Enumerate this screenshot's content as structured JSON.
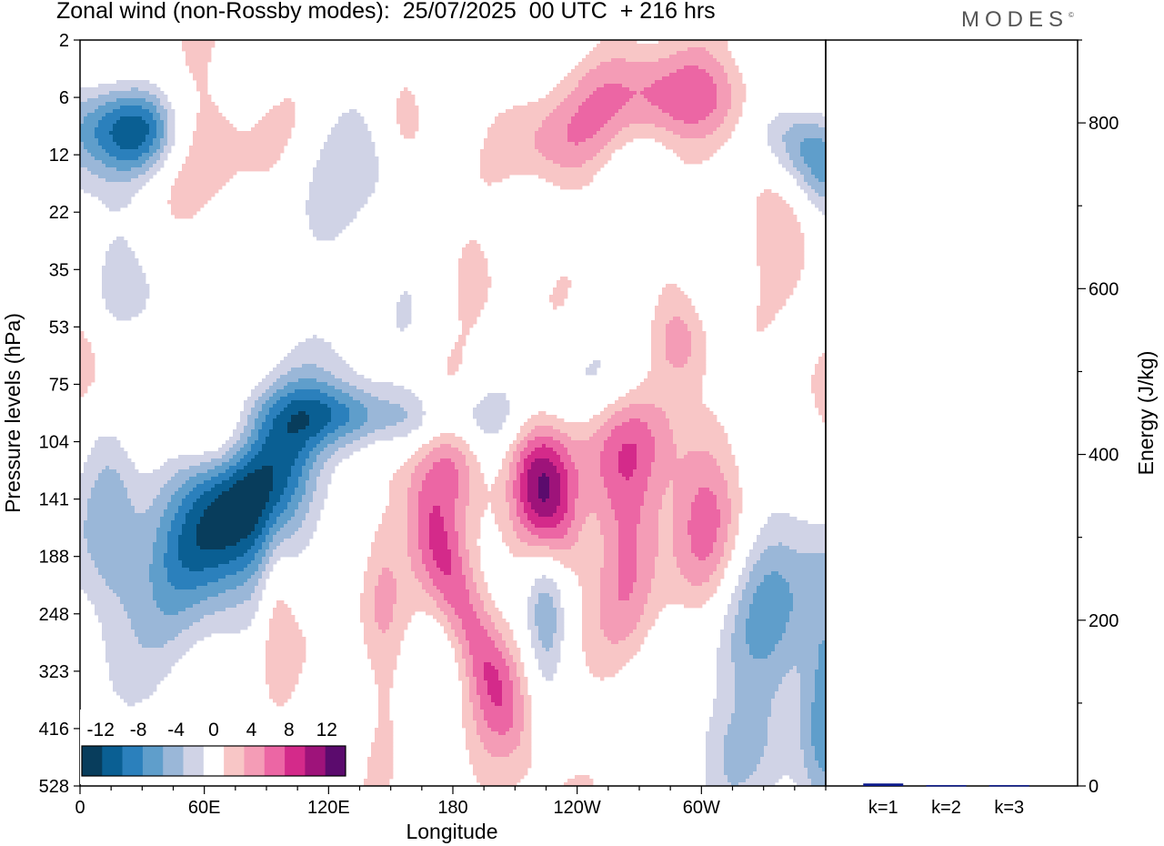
{
  "title": "Zonal wind (non-Rossby modes):  25/07/2025  00 UTC  + 216 hrs",
  "logo": {
    "text": "MODES",
    "mark": "©"
  },
  "chart_data": [
    {
      "type": "heatmap",
      "title": "Zonal wind (non-Rossby modes):  25/07/2025  00 UTC  + 216 hrs",
      "xlabel": "Longitude",
      "ylabel": "Pressure levels (hPa)",
      "x_ticks": [
        "0",
        "60E",
        "120E",
        "180",
        "120W",
        "60W"
      ],
      "x_tick_values": [
        0,
        60,
        120,
        180,
        240,
        300
      ],
      "xlim": [
        0,
        360
      ],
      "y_ticks": [
        "2",
        "6",
        "12",
        "22",
        "35",
        "53",
        "75",
        "104",
        "141",
        "188",
        "248",
        "323",
        "416",
        "528"
      ],
      "colorbar": {
        "labels": [
          "-12",
          "-8",
          "-4",
          "0",
          "4",
          "8",
          "12"
        ],
        "label_values": [
          -12,
          -8,
          -4,
          0,
          4,
          8,
          12
        ],
        "levels": [
          -14,
          -12,
          -10,
          -8,
          -6,
          -4,
          -2,
          2,
          4,
          6,
          8,
          10,
          12,
          14
        ],
        "colors": [
          "#083d5c",
          "#0a5f93",
          "#2b80bc",
          "#5f9ecb",
          "#9ab7d8",
          "#d0d3e6",
          "#ffffff",
          "#f8c6c6",
          "#f49cb6",
          "#ec66a4",
          "#d42a8a",
          "#9e137a",
          "#5b0b6d"
        ]
      },
      "features": [
        {
          "lon": 75,
          "level_index": 8.2,
          "lon_halfwidth": 22,
          "level_halfwidth": 1.2,
          "tilt": -0.75,
          "peak": -16
        },
        {
          "lon": 10,
          "level_index": 1.5,
          "lon_halfwidth": 16,
          "level_halfwidth": 0.6,
          "tilt": 0,
          "peak": -8
        },
        {
          "lon": 32,
          "level_index": 1.6,
          "lon_halfwidth": 12,
          "level_halfwidth": 0.5,
          "tilt": 0,
          "peak": -7
        },
        {
          "lon": 348,
          "level_index": 1.8,
          "lon_halfwidth": 16,
          "level_halfwidth": 0.7,
          "tilt": 0.6,
          "peak": -9
        },
        {
          "lon": 160,
          "level_index": 6.6,
          "lon_halfwidth": 40,
          "level_halfwidth": 0.4,
          "tilt": 0.02,
          "peak": -5
        },
        {
          "lon": 225,
          "level_index": 10.0,
          "lon_halfwidth": 7,
          "level_halfwidth": 1.0,
          "tilt": 0,
          "peak": -6
        },
        {
          "lon": 335,
          "level_index": 10.3,
          "lon_halfwidth": 20,
          "level_halfwidth": 1.4,
          "tilt": 0,
          "peak": -6
        },
        {
          "lon": 15,
          "level_index": 8.5,
          "lon_halfwidth": 10,
          "level_halfwidth": 1.6,
          "tilt": 0,
          "peak": -5
        },
        {
          "lon": 360,
          "level_index": 11.5,
          "lon_halfwidth": 8,
          "level_halfwidth": 2.0,
          "tilt": 0,
          "peak": -5
        },
        {
          "lon": 260,
          "level_index": 6.0,
          "lon_halfwidth": 30,
          "level_halfwidth": 0.5,
          "tilt": 0,
          "peak": -3
        },
        {
          "lon": 120,
          "level_index": 6.5,
          "lon_halfwidth": 20,
          "level_halfwidth": 0.4,
          "tilt": 0,
          "peak": -4
        },
        {
          "lon": 20,
          "level_index": 4.0,
          "lon_halfwidth": 25,
          "level_halfwidth": 1.5,
          "tilt": 0.02,
          "peak": -3
        },
        {
          "lon": 245,
          "level_index": 2.2,
          "lon_halfwidth": 25,
          "level_halfwidth": 0.5,
          "tilt": 0.01,
          "peak": -3
        },
        {
          "lon": 140,
          "level_index": 2.5,
          "lon_halfwidth": 30,
          "level_halfwidth": 1.5,
          "tilt": 0,
          "peak": -3
        },
        {
          "lon": 310,
          "level_index": 12.3,
          "lon_halfwidth": 20,
          "level_halfwidth": 0.7,
          "tilt": 0,
          "peak": -3
        },
        {
          "lon": 170,
          "level_index": 12.5,
          "lon_halfwidth": 15,
          "level_halfwidth": 1.0,
          "tilt": 0,
          "peak": -3
        },
        {
          "lon": 185,
          "level_index": 9.9,
          "lon_halfwidth": 10,
          "level_halfwidth": 1.5,
          "tilt": 0.5,
          "peak": 8
        },
        {
          "lon": 225,
          "level_index": 8.0,
          "lon_halfwidth": 11,
          "level_halfwidth": 1.0,
          "tilt": 0.2,
          "peak": 11
        },
        {
          "lon": 179,
          "level_index": 7.4,
          "lon_halfwidth": 12,
          "level_halfwidth": 0.8,
          "tilt": 0,
          "peak": 7
        },
        {
          "lon": 300,
          "level_index": 8.2,
          "lon_halfwidth": 12,
          "level_halfwidth": 1.2,
          "tilt": 0,
          "peak": 7
        },
        {
          "lon": 260,
          "level_index": 7.0,
          "lon_halfwidth": 20,
          "level_halfwidth": 1.0,
          "tilt": 0,
          "peak": 5
        },
        {
          "lon": 265,
          "level_index": 9.0,
          "lon_halfwidth": 12,
          "level_halfwidth": 1.5,
          "tilt": 0,
          "peak": 5
        },
        {
          "lon": 235,
          "level_index": 2.0,
          "lon_halfwidth": 22,
          "level_halfwidth": 0.6,
          "tilt": 0,
          "peak": 7
        },
        {
          "lon": 295,
          "level_index": 1.0,
          "lon_halfwidth": 35,
          "level_halfwidth": 0.6,
          "tilt": 0,
          "peak": 8
        },
        {
          "lon": 2,
          "level_index": 5.6,
          "lon_halfwidth": 18,
          "level_halfwidth": 0.7,
          "tilt": 0,
          "peak": 6
        },
        {
          "lon": 65,
          "level_index": 6.9,
          "lon_halfwidth": 14,
          "level_halfwidth": 0.5,
          "tilt": 0,
          "peak": 5
        },
        {
          "lon": 95,
          "level_index": 9.8,
          "lon_halfwidth": 6,
          "level_halfwidth": 1.2,
          "tilt": 0,
          "peak": 4
        },
        {
          "lon": 145,
          "level_index": 9.5,
          "lon_halfwidth": 8,
          "level_halfwidth": 2.0,
          "tilt": 0,
          "peak": 4
        },
        {
          "lon": 200,
          "level_index": 12.5,
          "lon_halfwidth": 30,
          "level_halfwidth": 1.2,
          "tilt": 0,
          "peak": 3
        },
        {
          "lon": 290,
          "level_index": 5.2,
          "lon_halfwidth": 10,
          "level_halfwidth": 0.7,
          "tilt": 0,
          "peak": 5
        },
        {
          "lon": 360,
          "level_index": 6.0,
          "lon_halfwidth": 8,
          "level_halfwidth": 0.5,
          "tilt": 0,
          "peak": 5
        },
        {
          "lon": 340,
          "level_index": 3.3,
          "lon_halfwidth": 14,
          "level_halfwidth": 0.8,
          "tilt": 0,
          "peak": 4
        },
        {
          "lon": 160,
          "level_index": 1.5,
          "lon_halfwidth": 10,
          "level_halfwidth": 0.6,
          "tilt": 0,
          "peak": 5
        },
        {
          "lon": 60,
          "level_index": 1.8,
          "lon_halfwidth": 35,
          "level_halfwidth": 1.5,
          "tilt": 0.02,
          "peak": 3
        },
        {
          "lon": 190,
          "level_index": 4.0,
          "lon_halfwidth": 20,
          "level_halfwidth": 0.7,
          "tilt": 0,
          "peak": 3
        }
      ]
    },
    {
      "type": "bar",
      "ylabel": "Energy (J/kg)",
      "categories": [
        "k=1",
        "k=2",
        "k=3"
      ],
      "values": [
        3,
        1,
        1
      ],
      "ylim": [
        0,
        900
      ],
      "y_ticks": [
        0,
        200,
        400,
        600,
        800
      ],
      "bar_color": "#0b1a8c"
    }
  ]
}
